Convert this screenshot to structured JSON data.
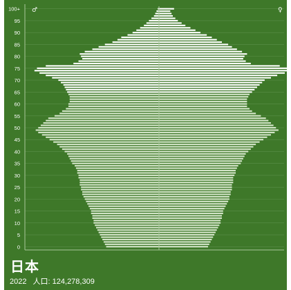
{
  "country": {
    "name": "日本",
    "year": "2022",
    "population_label": "人口: 124,278,309"
  },
  "colors": {
    "background": "#3e7829",
    "upper_bars": "#ffffff",
    "lower_bars": "#d4e5c9",
    "axis": "#a9c79b",
    "grid": "#5b8f4a",
    "text": "#ffffff"
  },
  "icons": {
    "male": "male-symbol-icon ♂",
    "female": "female-symbol-icon ♀"
  },
  "chart_data": {
    "type": "bar",
    "orientation": "horizontal-pyramid",
    "split_age": 65,
    "age_ticks": [
      "0",
      "5",
      "10",
      "15",
      "20",
      "25",
      "30",
      "35",
      "40",
      "45",
      "50",
      "55",
      "60",
      "65",
      "70",
      "75",
      "80",
      "85",
      "90",
      "95",
      "100+"
    ],
    "male_symbol": "♂",
    "female_symbol": "♀",
    "xlim": [
      -0.75,
      0.75
    ],
    "series": [
      {
        "side": "left",
        "ages": [
          0,
          1,
          2,
          3,
          4,
          5,
          6,
          7,
          8,
          9,
          10,
          11,
          12,
          13,
          14,
          15,
          16,
          17,
          18,
          19,
          20,
          21,
          22,
          23,
          24,
          25,
          26,
          27,
          28,
          29,
          30,
          31,
          32,
          33,
          34,
          35,
          36,
          37,
          38,
          39,
          40,
          41,
          42,
          43,
          44,
          45,
          46,
          47,
          48,
          49,
          50,
          51,
          52,
          53,
          54,
          55,
          56,
          57,
          58,
          59,
          60,
          61,
          62,
          63,
          64,
          65,
          66,
          67,
          68,
          69,
          70,
          71,
          72,
          73,
          74,
          75,
          76,
          77,
          78,
          79,
          80,
          81,
          82,
          83,
          84,
          85,
          86,
          87,
          88,
          89,
          90,
          91,
          92,
          93,
          94,
          95,
          96,
          97,
          98,
          99,
          100
        ],
        "values": [
          0.42,
          0.43,
          0.44,
          0.45,
          0.46,
          0.47,
          0.48,
          0.49,
          0.5,
          0.51,
          0.52,
          0.52,
          0.53,
          0.53,
          0.54,
          0.54,
          0.55,
          0.56,
          0.57,
          0.58,
          0.59,
          0.6,
          0.61,
          0.61,
          0.62,
          0.62,
          0.63,
          0.63,
          0.63,
          0.64,
          0.64,
          0.65,
          0.65,
          0.66,
          0.67,
          0.69,
          0.7,
          0.71,
          0.72,
          0.73,
          0.75,
          0.77,
          0.79,
          0.81,
          0.84,
          0.87,
          0.9,
          0.93,
          0.96,
          0.98,
          0.96,
          0.94,
          0.92,
          0.9,
          0.88,
          0.83,
          0.79,
          0.77,
          0.74,
          0.72,
          0.72,
          0.71,
          0.71,
          0.71,
          0.72,
          0.73,
          0.74,
          0.75,
          0.76,
          0.78,
          0.8,
          0.85,
          0.9,
          0.95,
          0.99,
          0.97,
          0.9,
          0.68,
          0.64,
          0.61,
          0.62,
          0.63,
          0.59,
          0.53,
          0.48,
          0.43,
          0.37,
          0.33,
          0.3,
          0.25,
          0.21,
          0.18,
          0.15,
          0.12,
          0.1,
          0.08,
          0.06,
          0.04,
          0.03,
          0.02,
          0.01
        ]
      },
      {
        "side": "right",
        "ages": [
          0,
          1,
          2,
          3,
          4,
          5,
          6,
          7,
          8,
          9,
          10,
          11,
          12,
          13,
          14,
          15,
          16,
          17,
          18,
          19,
          20,
          21,
          22,
          23,
          24,
          25,
          26,
          27,
          28,
          29,
          30,
          31,
          32,
          33,
          34,
          35,
          36,
          37,
          38,
          39,
          40,
          41,
          42,
          43,
          44,
          45,
          46,
          47,
          48,
          49,
          50,
          51,
          52,
          53,
          54,
          55,
          56,
          57,
          58,
          59,
          60,
          61,
          62,
          63,
          64,
          65,
          66,
          67,
          68,
          69,
          70,
          71,
          72,
          73,
          74,
          75,
          76,
          77,
          78,
          79,
          80,
          81,
          82,
          83,
          84,
          85,
          86,
          87,
          88,
          89,
          90,
          91,
          92,
          93,
          94,
          95,
          96,
          97,
          98,
          99,
          100
        ],
        "values": [
          0.39,
          0.4,
          0.41,
          0.42,
          0.43,
          0.44,
          0.45,
          0.46,
          0.47,
          0.48,
          0.49,
          0.49,
          0.5,
          0.5,
          0.51,
          0.51,
          0.52,
          0.53,
          0.54,
          0.55,
          0.56,
          0.56,
          0.57,
          0.57,
          0.58,
          0.58,
          0.58,
          0.59,
          0.59,
          0.59,
          0.6,
          0.61,
          0.61,
          0.62,
          0.63,
          0.65,
          0.66,
          0.67,
          0.68,
          0.69,
          0.71,
          0.73,
          0.75,
          0.77,
          0.8,
          0.83,
          0.86,
          0.89,
          0.92,
          0.95,
          0.93,
          0.91,
          0.89,
          0.87,
          0.85,
          0.81,
          0.77,
          0.74,
          0.72,
          0.7,
          0.7,
          0.7,
          0.7,
          0.71,
          0.72,
          0.74,
          0.76,
          0.78,
          0.8,
          0.82,
          0.84,
          0.89,
          0.94,
          1.0,
          1.05,
          1.03,
          0.96,
          0.73,
          0.69,
          0.67,
          0.68,
          0.7,
          0.66,
          0.62,
          0.58,
          0.55,
          0.5,
          0.46,
          0.42,
          0.38,
          0.33,
          0.29,
          0.25,
          0.21,
          0.18,
          0.15,
          0.13,
          0.11,
          0.1,
          0.09,
          0.12
        ]
      }
    ]
  }
}
